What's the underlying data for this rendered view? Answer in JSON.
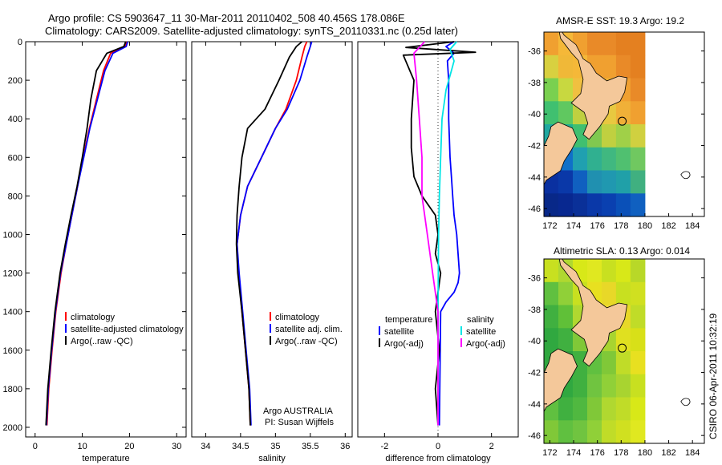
{
  "title_line1": "Argo profile: CS 5903647_11 30-Mar-2011 20110402_508 40.456S 178.086E",
  "title_line2": "Climatology: CARS2009. Satellite-adjusted climatology: synTS_20110331.nc (0.25d later)",
  "side_label": "CSIRO 06-Apr-2011 10:32:19",
  "map_sst_title": "AMSR-E SST: 19.3 Argo: 19.2",
  "map_sla_title": "Altimetric SLA: 0.13 Argo: 0.014",
  "argo_credit_1": "Argo AUSTRALIA",
  "argo_credit_2": "PI: Susan Wijffels",
  "legend_diff_header_left": "temperature",
  "legend_diff_header_right": "salinity",
  "colors": {
    "climatology": "#ff0000",
    "satellite": "#0000ff",
    "argo": "#000000",
    "sal_satellite": "#00e5e5",
    "sal_argo": "#ff00ff"
  },
  "chart_data": [
    {
      "type": "line",
      "xlabel": "temperature",
      "ylabel": "",
      "xlim": [
        -2,
        32
      ],
      "ylim": [
        2050,
        0
      ],
      "xticks": [
        0,
        10,
        20,
        30
      ],
      "yticks": [
        0,
        200,
        400,
        600,
        800,
        1000,
        1200,
        1400,
        1600,
        1800,
        2000
      ],
      "legend": "bottom-right",
      "series": [
        {
          "name": "climatology",
          "color": "#ff0000",
          "x": [
            19.5,
            19.0,
            16.0,
            14.5,
            13.0,
            11.5,
            10.2,
            9.0,
            7.8,
            6.6,
            5.5,
            4.4,
            3.6,
            2.9,
            2.5
          ],
          "y": [
            0,
            25,
            60,
            150,
            300,
            450,
            600,
            750,
            900,
            1050,
            1200,
            1400,
            1600,
            1800,
            1990
          ]
        },
        {
          "name": "satellite-adjusted climatology",
          "color": "#0000ff",
          "x": [
            19.6,
            19.3,
            16.5,
            14.8,
            13.2,
            11.6,
            10.3,
            9.0,
            7.8,
            6.6,
            5.4,
            4.3,
            3.5,
            2.8,
            2.4
          ],
          "y": [
            0,
            25,
            60,
            150,
            300,
            450,
            600,
            750,
            900,
            1050,
            1200,
            1400,
            1600,
            1800,
            1990
          ]
        },
        {
          "name": "Argo(..raw -QC)",
          "color": "#000000",
          "x": [
            19.2,
            18.8,
            15.2,
            13.0,
            11.8,
            11.0,
            10.0,
            8.9,
            7.6,
            6.4,
            5.3,
            4.2,
            3.4,
            2.7,
            2.3
          ],
          "y": [
            0,
            25,
            60,
            150,
            300,
            450,
            600,
            750,
            900,
            1050,
            1200,
            1400,
            1600,
            1800,
            1990
          ]
        }
      ]
    },
    {
      "type": "line",
      "xlabel": "salinity",
      "ylabel": "",
      "xlim": [
        33.8,
        36.1
      ],
      "ylim": [
        2050,
        0
      ],
      "xticks": [
        34,
        34.5,
        35,
        35.5,
        36
      ],
      "yticks": [],
      "legend": "bottom-right",
      "series": [
        {
          "name": "climatology",
          "color": "#ff0000",
          "x": [
            35.45,
            35.42,
            35.38,
            35.3,
            35.15,
            35.0,
            34.8,
            34.6,
            34.5,
            34.45,
            34.47,
            34.52,
            34.57,
            34.62,
            34.64
          ],
          "y": [
            0,
            25,
            80,
            200,
            350,
            450,
            600,
            750,
            900,
            1050,
            1200,
            1400,
            1600,
            1800,
            1990
          ]
        },
        {
          "name": "satellite adj. clim.",
          "color": "#0000ff",
          "x": [
            35.52,
            35.5,
            35.45,
            35.35,
            35.17,
            35.0,
            34.8,
            34.6,
            34.5,
            34.45,
            34.48,
            34.53,
            34.58,
            34.63,
            34.65
          ],
          "y": [
            0,
            25,
            80,
            200,
            350,
            450,
            600,
            750,
            900,
            1050,
            1200,
            1400,
            1600,
            1800,
            1990
          ]
        },
        {
          "name": "Argo(..raw -QC)",
          "color": "#000000",
          "x": [
            35.38,
            35.3,
            35.2,
            35.05,
            34.85,
            34.6,
            34.52,
            34.48,
            34.45,
            34.44,
            34.46,
            34.52,
            34.57,
            34.62,
            34.64
          ],
          "y": [
            0,
            25,
            80,
            200,
            350,
            450,
            600,
            750,
            900,
            1050,
            1200,
            1400,
            1600,
            1800,
            1990
          ]
        }
      ]
    },
    {
      "type": "line",
      "xlabel": "difference from climatology",
      "ylabel": "",
      "xlim": [
        -3,
        3
      ],
      "ylim": [
        2050,
        0
      ],
      "xticks": [
        -2,
        0,
        2
      ],
      "yticks": [],
      "legend": "bottom",
      "series": [
        {
          "name": "satellite",
          "group": "temperature",
          "color": "#0000ff",
          "x": [
            0.6,
            0.3,
            0.6,
            0.35,
            0.4,
            0.4,
            0.45,
            0.5,
            0.55,
            0.6,
            0.7,
            0.75,
            0.8,
            0.75,
            0.6,
            0.3,
            0.1,
            0.05
          ],
          "y": [
            0,
            25,
            60,
            100,
            200,
            400,
            600,
            700,
            800,
            900,
            1000,
            1100,
            1200,
            1250,
            1300,
            1350,
            1400,
            1990
          ]
        },
        {
          "name": "Argo(-adj)",
          "group": "temperature",
          "color": "#000000",
          "x": [
            0.6,
            -1.2,
            1.4,
            -1.3,
            -0.9,
            -1.0,
            -1.0,
            -0.9,
            -0.6,
            -0.1,
            0.0,
            -0.1,
            0.1,
            -0.1,
            0.05,
            -0.1,
            0.0
          ],
          "y": [
            0,
            30,
            55,
            70,
            200,
            400,
            550,
            700,
            800,
            900,
            1000,
            1100,
            1200,
            1400,
            1600,
            1800,
            1990
          ]
        },
        {
          "name": "satellite",
          "group": "salinity",
          "color": "#00e5e5",
          "x": [
            0.7,
            0.45,
            0.6,
            0.5,
            0.3,
            0.15,
            0.1,
            0.05,
            0.02,
            0.0,
            0.0
          ],
          "y": [
            0,
            40,
            100,
            150,
            250,
            400,
            600,
            800,
            1000,
            1400,
            1990
          ]
        },
        {
          "name": "Argo(-adj)",
          "group": "salinity",
          "color": "#ff00ff",
          "x": [
            -0.5,
            -0.9,
            -0.8,
            -0.7,
            -0.6,
            -0.6,
            -0.4,
            -0.2,
            0.0,
            0.0
          ],
          "y": [
            0,
            60,
            200,
            400,
            600,
            800,
            1000,
            1200,
            1400,
            1990
          ]
        }
      ]
    },
    {
      "type": "heatmap",
      "title": "AMSR-E SST: 19.3 Argo: 19.2",
      "xlim": [
        171.5,
        185
      ],
      "ylim": [
        -46.5,
        -34.8
      ],
      "xticks": [
        172,
        174,
        176,
        178,
        180,
        182,
        184
      ],
      "yticks": [
        -36,
        -38,
        -40,
        -42,
        -44,
        -46
      ]
    },
    {
      "type": "heatmap",
      "title": "Altimetric SLA: 0.13 Argo: 0.014",
      "xlim": [
        171.5,
        185
      ],
      "ylim": [
        -46.5,
        -34.8
      ],
      "xticks": [
        172,
        174,
        176,
        178,
        180,
        182,
        184
      ],
      "yticks": [
        -36,
        -38,
        -40,
        -42,
        -44,
        -46
      ]
    }
  ]
}
